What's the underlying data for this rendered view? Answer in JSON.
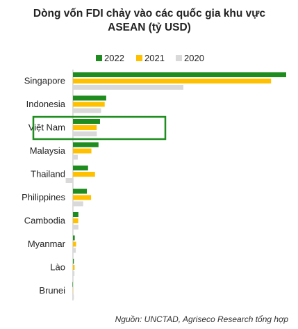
{
  "chart_data": {
    "type": "bar",
    "orientation": "horizontal",
    "title": "Dòng vốn FDI chảy vào các quốc gia khu vực ASEAN (tỷ USD)",
    "categories": [
      "Singapore",
      "Indonesia",
      "Việt Nam",
      "Malaysia",
      "Thailand",
      "Philippines",
      "Cambodia",
      "Myanmar",
      "Lào",
      "Brunei"
    ],
    "series": [
      {
        "name": "2022",
        "color": "#1e8c1e",
        "values": [
          141,
          22,
          17.9,
          16.9,
          10,
          9.2,
          3.6,
          1.2,
          0.6,
          -0.3
        ]
      },
      {
        "name": "2021",
        "color": "#ffc000",
        "values": [
          131,
          21,
          15.7,
          12.2,
          14.6,
          12,
          3.5,
          2.1,
          1.1,
          0.2
        ]
      },
      {
        "name": "2020",
        "color": "#d9d9d9",
        "values": [
          73,
          18.6,
          15.8,
          3.2,
          -4.8,
          6.8,
          3.6,
          1.9,
          1,
          0.6
        ]
      }
    ],
    "legend": "top",
    "highlight": "Việt Nam",
    "source": "Nguồn: UNCTAD, Agriseco Research tổng hợp"
  }
}
